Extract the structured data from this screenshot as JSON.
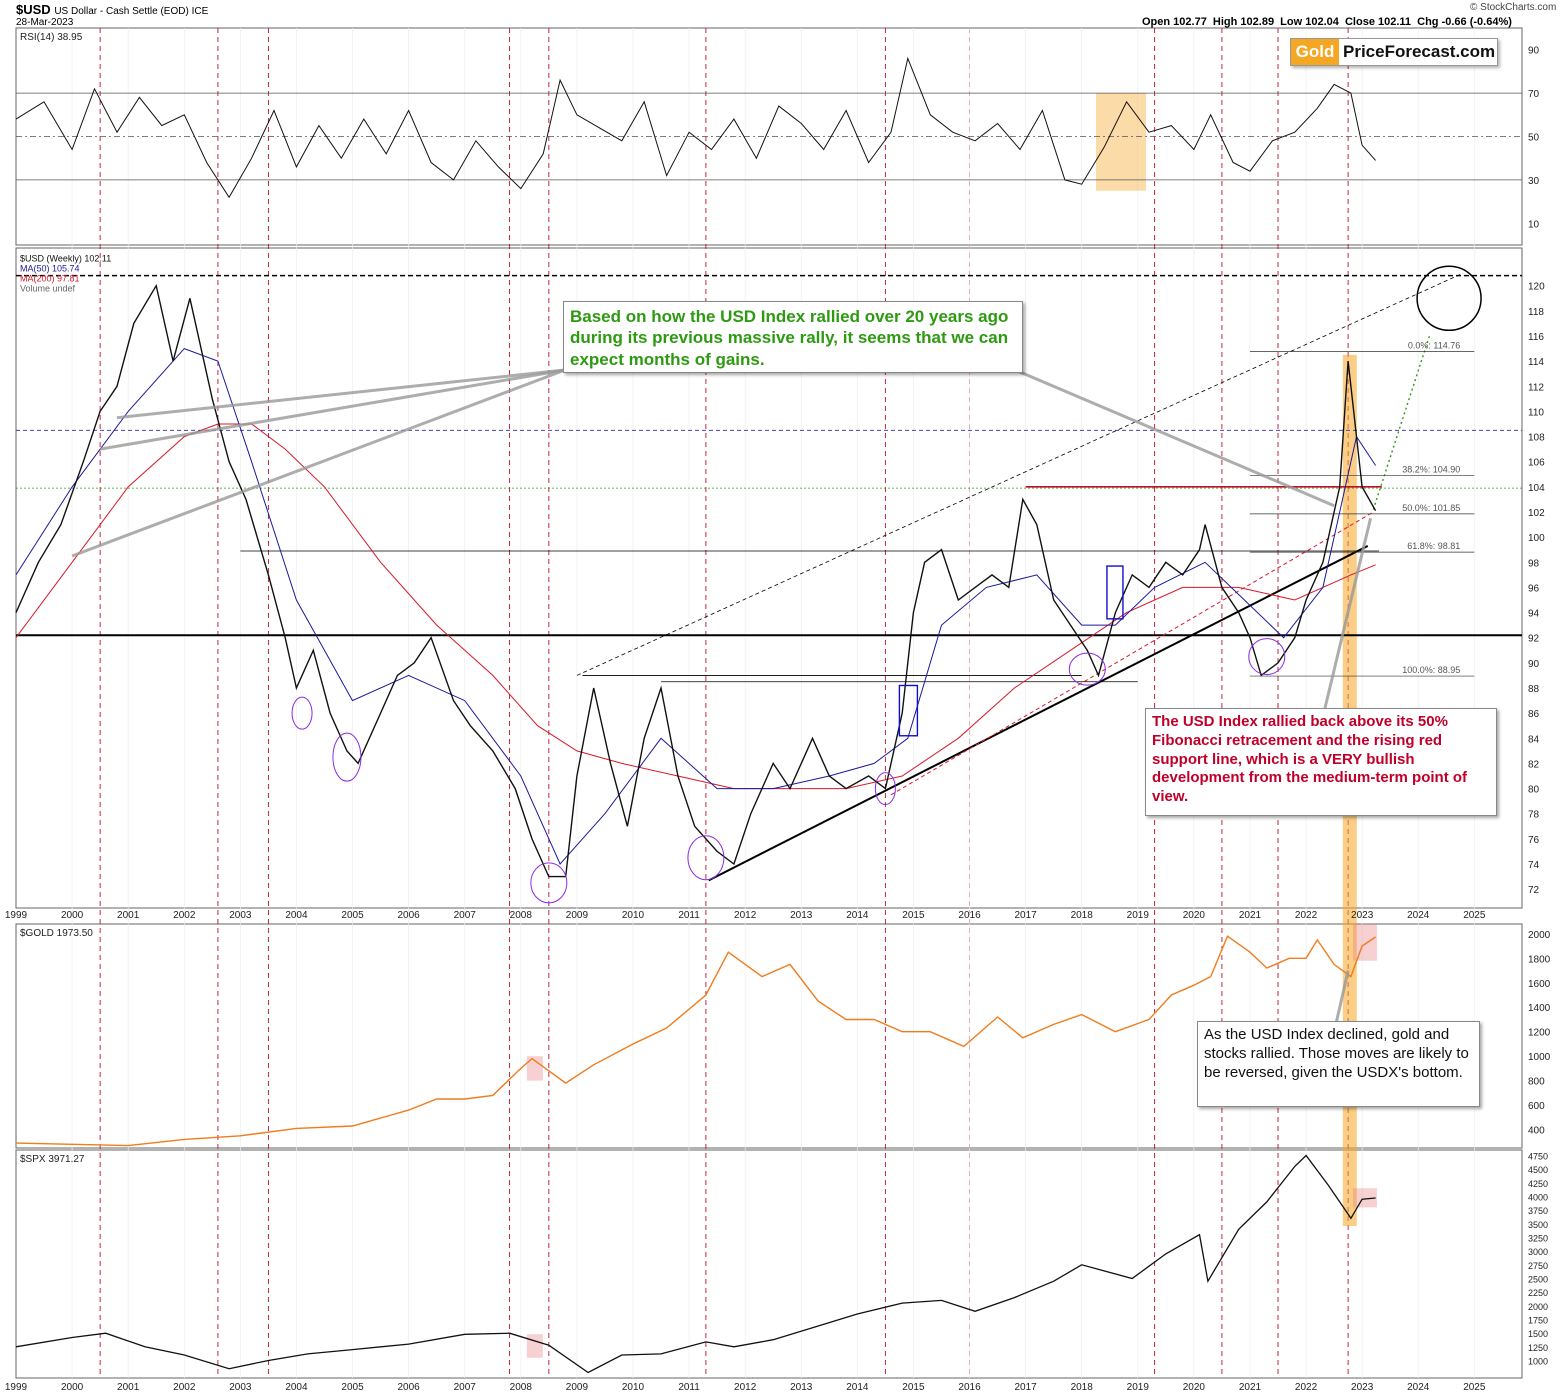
{
  "header": {
    "symbol": "$USD",
    "description": "US Dollar - Cash Settle (EOD) ICE",
    "date": "28-Mar-2023",
    "ohlc": "Open 102.77  High 102.89  Low 102.04  Close 102.11  Chg -0.66 (-0.64%)",
    "credit": "© StockCharts.com"
  },
  "logo": {
    "gold": "Gold",
    "rest": "PriceForecast.com"
  },
  "notes": {
    "green": "Based on how the USD Index rallied over 20 years ago during its previous massive rally, it seems that we can expect months of gains.",
    "red": "The USD Index rallied back above its 50% Fibonacci retracement and the rising red support line, which is a VERY bullish development from the medium-term point of view.",
    "black": "As the USD Index declined, gold and stocks rallied. Those moves are likely to be reversed, given the USDX's bottom."
  },
  "colors": {
    "red_note": "#c0002a",
    "green_note": "#2e9a12",
    "gold_line": "#f07c1c",
    "ma50": "#1a1a9c",
    "ma200": "#d8182a",
    "highlight": "#f5a623"
  },
  "chart_data": [
    {
      "panel": "rsi",
      "type": "line",
      "legend": "RSI(14) 38.95",
      "ylim": [
        0,
        100
      ],
      "yticks": [
        10,
        30,
        50,
        70,
        90
      ],
      "x": [
        1999.0,
        1999.5,
        2000.0,
        2000.4,
        2000.8,
        2001.2,
        2001.6,
        2002.0,
        2002.4,
        2002.8,
        2003.2,
        2003.6,
        2004.0,
        2004.4,
        2004.8,
        2005.2,
        2005.6,
        2006.0,
        2006.4,
        2006.8,
        2007.2,
        2007.6,
        2008.0,
        2008.4,
        2008.7,
        2009.0,
        2009.4,
        2009.8,
        2010.2,
        2010.6,
        2011.0,
        2011.4,
        2011.8,
        2012.2,
        2012.6,
        2013.0,
        2013.4,
        2013.8,
        2014.2,
        2014.6,
        2014.9,
        2015.3,
        2015.7,
        2016.1,
        2016.5,
        2016.9,
        2017.3,
        2017.7,
        2018.0,
        2018.4,
        2018.8,
        2019.2,
        2019.6,
        2020.0,
        2020.3,
        2020.7,
        2021.0,
        2021.4,
        2021.8,
        2022.2,
        2022.5,
        2022.8,
        2023.0,
        2023.24
      ],
      "y": [
        58,
        66,
        44,
        72,
        52,
        68,
        55,
        60,
        38,
        22,
        40,
        62,
        36,
        55,
        40,
        58,
        42,
        62,
        38,
        30,
        48,
        36,
        26,
        42,
        76,
        60,
        54,
        48,
        66,
        32,
        52,
        44,
        58,
        40,
        64,
        56,
        44,
        62,
        38,
        52,
        86,
        60,
        52,
        48,
        56,
        44,
        62,
        30,
        28,
        45,
        66,
        52,
        55,
        44,
        60,
        38,
        34,
        48,
        52,
        63,
        74,
        70,
        46,
        39
      ]
    },
    {
      "panel": "usd",
      "type": "line",
      "title": "$USD (Weekly) 102.11",
      "legend": [
        "$USD (Weekly) 102.11",
        "MA(50) 105.74",
        "MA(200) 97.81",
        "Volume undef"
      ],
      "ylim": [
        70.5,
        123
      ],
      "yticks": [
        72,
        74,
        76,
        78,
        80,
        82,
        84,
        86,
        88,
        90,
        92,
        94,
        96,
        98,
        100,
        102,
        104,
        106,
        108,
        110,
        112,
        114,
        116,
        118,
        120
      ],
      "xticks": [
        "1999",
        "2000",
        "2001",
        "2002",
        "2003",
        "2004",
        "2005",
        "2006",
        "2007",
        "2008",
        "2009",
        "2010",
        "2011",
        "2012",
        "2013",
        "2014",
        "2015",
        "2016",
        "2017",
        "2018",
        "2019",
        "2020",
        "2021",
        "2022",
        "2023",
        "2024",
        "2025"
      ],
      "series": [
        {
          "name": "$USD (Weekly) 102.11",
          "x": [
            1999.0,
            1999.4,
            1999.8,
            2000.2,
            2000.5,
            2000.8,
            2001.1,
            2001.5,
            2001.8,
            2002.1,
            2002.5,
            2002.8,
            2003.1,
            2003.5,
            2003.8,
            2004.0,
            2004.3,
            2004.6,
            2004.9,
            2005.1,
            2005.5,
            2005.8,
            2006.1,
            2006.4,
            2006.8,
            2007.1,
            2007.5,
            2007.9,
            2008.2,
            2008.5,
            2008.8,
            2009.0,
            2009.3,
            2009.6,
            2009.9,
            2010.2,
            2010.5,
            2010.8,
            2011.1,
            2011.5,
            2011.8,
            2012.1,
            2012.5,
            2012.8,
            2013.2,
            2013.5,
            2013.8,
            2014.2,
            2014.5,
            2014.8,
            2015.0,
            2015.2,
            2015.5,
            2015.8,
            2016.1,
            2016.4,
            2016.7,
            2016.95,
            2017.2,
            2017.5,
            2017.8,
            2018.1,
            2018.3,
            2018.6,
            2018.9,
            2019.2,
            2019.5,
            2019.8,
            2020.1,
            2020.2,
            2020.5,
            2020.8,
            2021.0,
            2021.2,
            2021.5,
            2021.8,
            2022.0,
            2022.3,
            2022.6,
            2022.75,
            2023.0,
            2023.24
          ],
          "y": [
            94,
            98,
            101,
            106,
            110,
            112,
            117,
            120,
            114,
            119,
            111,
            106,
            103,
            97,
            92,
            88,
            91,
            86,
            83,
            82,
            86,
            89,
            90,
            92,
            87,
            85,
            83,
            80,
            76,
            73,
            73,
            81,
            88,
            82,
            77,
            84,
            88,
            81,
            77,
            75,
            74,
            78,
            82,
            80,
            84,
            81,
            80,
            81,
            80,
            86,
            94,
            98,
            99,
            95,
            96,
            97,
            96,
            103,
            101,
            95,
            93,
            91,
            89,
            94,
            97,
            96,
            98,
            97,
            99,
            101,
            96,
            94,
            92,
            89,
            90,
            92,
            95,
            98,
            104,
            114,
            104,
            102.1
          ]
        },
        {
          "name": "MA(50) 105.74",
          "x": [
            1999.0,
            2000.0,
            2001.0,
            2002.0,
            2002.6,
            2003.2,
            2004.0,
            2005.0,
            2006.0,
            2007.0,
            2008.0,
            2008.7,
            2009.5,
            2010.5,
            2011.5,
            2012.5,
            2013.5,
            2014.3,
            2014.9,
            2015.5,
            2016.3,
            2017.2,
            2018.0,
            2018.6,
            2019.3,
            2020.2,
            2020.9,
            2021.6,
            2022.3,
            2022.9,
            2023.24
          ],
          "y": [
            97,
            104,
            110,
            115,
            114,
            106,
            95,
            87,
            89,
            87,
            81,
            74,
            78,
            84,
            80,
            80,
            81,
            82,
            84,
            93,
            96,
            97,
            93,
            93,
            96,
            98,
            95,
            92,
            96,
            108,
            105.7
          ]
        },
        {
          "name": "MA(200) 97.81",
          "x": [
            1999.0,
            2000.0,
            2001.0,
            2002.0,
            2002.6,
            2003.2,
            2003.8,
            2004.5,
            2005.5,
            2006.5,
            2007.5,
            2008.3,
            2009.0,
            2009.8,
            2010.8,
            2011.8,
            2012.8,
            2013.8,
            2014.8,
            2015.8,
            2016.8,
            2017.8,
            2018.8,
            2019.8,
            2020.8,
            2021.8,
            2022.8,
            2023.24
          ],
          "y": [
            92,
            98,
            104,
            108,
            109,
            109,
            107,
            104,
            98,
            93,
            89,
            85,
            83,
            82,
            81,
            80,
            80,
            80,
            81,
            84,
            88,
            91,
            94,
            96,
            96,
            95,
            97,
            97.8
          ]
        }
      ],
      "fibonacci": [
        {
          "label": "0.0%: 114.76",
          "value": 114.76
        },
        {
          "label": "38.2%: 104.90",
          "value": 104.9
        },
        {
          "label": "50.0%: 101.85",
          "value": 101.85
        },
        {
          "label": "61.8%: 98.81",
          "value": 98.81
        },
        {
          "label": "100.0%: 88.95",
          "value": 88.95
        }
      ]
    },
    {
      "panel": "gold",
      "type": "line",
      "legend": "$GOLD 1973.50",
      "ylim": [
        250,
        2080
      ],
      "yticks": [
        400,
        600,
        800,
        1000,
        1200,
        1400,
        1600,
        1800,
        2000
      ],
      "x": [
        1999.0,
        2000.0,
        2001.0,
        2002.0,
        2003.0,
        2004.0,
        2005.0,
        2006.0,
        2006.5,
        2007.0,
        2007.5,
        2008.0,
        2008.2,
        2008.8,
        2009.3,
        2010.0,
        2010.6,
        2011.3,
        2011.7,
        2012.3,
        2012.8,
        2013.3,
        2013.8,
        2014.3,
        2014.8,
        2015.3,
        2015.9,
        2016.5,
        2016.95,
        2017.5,
        2018.0,
        2018.6,
        2019.2,
        2019.6,
        2020.0,
        2020.3,
        2020.6,
        2021.0,
        2021.3,
        2021.7,
        2022.0,
        2022.2,
        2022.5,
        2022.8,
        2023.0,
        2023.24
      ],
      "y": [
        290,
        280,
        270,
        320,
        350,
        410,
        430,
        560,
        650,
        650,
        680,
        900,
        980,
        780,
        930,
        1100,
        1230,
        1500,
        1850,
        1650,
        1750,
        1450,
        1300,
        1300,
        1200,
        1200,
        1080,
        1320,
        1150,
        1260,
        1340,
        1200,
        1300,
        1500,
        1580,
        1650,
        1980,
        1850,
        1720,
        1800,
        1800,
        1950,
        1750,
        1650,
        1900,
        1973.5
      ]
    },
    {
      "panel": "spx",
      "type": "line",
      "legend": "$SPX 3971.27",
      "ylim": [
        680,
        4850
      ],
      "yticks": [
        1000,
        1250,
        1500,
        1750,
        2000,
        2250,
        2500,
        2750,
        3000,
        3250,
        3500,
        3750,
        4000,
        4250,
        4500,
        4750
      ],
      "xticks": [
        "1999",
        "2000",
        "2001",
        "2002",
        "2003",
        "2004",
        "2005",
        "2006",
        "2007",
        "2008",
        "2009",
        "2010",
        "2011",
        "2012",
        "2013",
        "2014",
        "2015",
        "2016",
        "2017",
        "2018",
        "2019",
        "2020",
        "2021",
        "2022",
        "2023",
        "2024",
        "2025"
      ],
      "x": [
        1999.0,
        2000.0,
        2000.6,
        2001.3,
        2002.0,
        2002.8,
        2003.5,
        2004.2,
        2005.0,
        2006.0,
        2007.0,
        2007.8,
        2008.5,
        2009.2,
        2009.8,
        2010.5,
        2011.3,
        2011.8,
        2012.5,
        2013.2,
        2014.0,
        2014.8,
        2015.5,
        2016.1,
        2016.8,
        2017.5,
        2018.0,
        2018.9,
        2019.5,
        2020.1,
        2020.25,
        2020.8,
        2021.3,
        2021.8,
        2022.0,
        2022.4,
        2022.8,
        2023.0,
        2023.24
      ],
      "y": [
        1250,
        1420,
        1500,
        1250,
        1100,
        850,
        1000,
        1120,
        1200,
        1300,
        1480,
        1500,
        1280,
        780,
        1100,
        1120,
        1340,
        1250,
        1380,
        1600,
        1850,
        2050,
        2100,
        1900,
        2150,
        2450,
        2750,
        2500,
        2950,
        3300,
        2450,
        3400,
        3900,
        4550,
        4750,
        4200,
        3600,
        3950,
        3971.3
      ]
    }
  ]
}
